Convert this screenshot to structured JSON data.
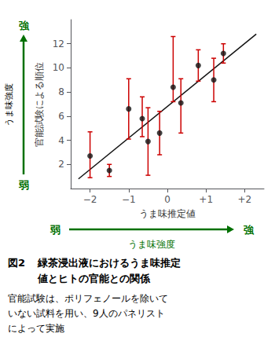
{
  "chart_data": {
    "type": "scatter",
    "xlabel": "うま味推定値",
    "ylabel": "官能試験による順位",
    "series": [
      {
        "type": "line",
        "color": "#111111",
        "x": [
          -2.3,
          2.3
        ],
        "values": [
          0.8,
          12.8
        ]
      },
      {
        "type": "scatter",
        "color": "#111111",
        "marker": "circle",
        "x": [
          -2.0,
          -1.5,
          -1.0,
          -0.65,
          -0.5,
          -0.2,
          0.15,
          0.35,
          0.8,
          1.2,
          1.45
        ],
        "values": [
          2.7,
          1.5,
          6.6,
          5.8,
          3.9,
          4.6,
          8.4,
          7.1,
          10.2,
          9.0,
          11.2
        ],
        "error_low": [
          1.8,
          0.5,
          2.5,
          1.5,
          2.8,
          1.8,
          1.2,
          2.5,
          1.3,
          1.8,
          0.8
        ],
        "error_high": [
          2.0,
          0.5,
          2.5,
          1.8,
          2.8,
          1.8,
          4.2,
          2.0,
          1.3,
          1.8,
          0.8
        ],
        "error_color": "#cc0000"
      }
    ],
    "xlim": [
      -2.5,
      2.5
    ],
    "ylim": [
      0,
      14
    ],
    "xticks": [
      {
        "value": -2,
        "label": "−2"
      },
      {
        "value": -1,
        "label": "−1"
      },
      0,
      {
        "value": 1,
        "label": "+1"
      },
      {
        "value": 2,
        "label": "+2"
      }
    ],
    "yticks": [
      2,
      4,
      6,
      8,
      10,
      12
    ],
    "grid": false,
    "arrows": [
      {
        "direction": "vertical",
        "start_label": "弱",
        "end_label": "強",
        "label": "うま味強度",
        "color": "#007000",
        "label_color": "#000000"
      },
      {
        "direction": "horizontal",
        "start_label": "弱",
        "end_label": "強",
        "label": "うま味強度",
        "color": "#007000",
        "label_color": "#007000"
      }
    ],
    "caption_title": [
      "図2",
      "緑茶浸出液におけるうま味推定",
      "値とヒトの官能との関係"
    ],
    "caption": [
      "官能試験は、ポリフェノールを除いて",
      "いない試料を用い、9人のパネリスト",
      "によって実施"
    ]
  }
}
